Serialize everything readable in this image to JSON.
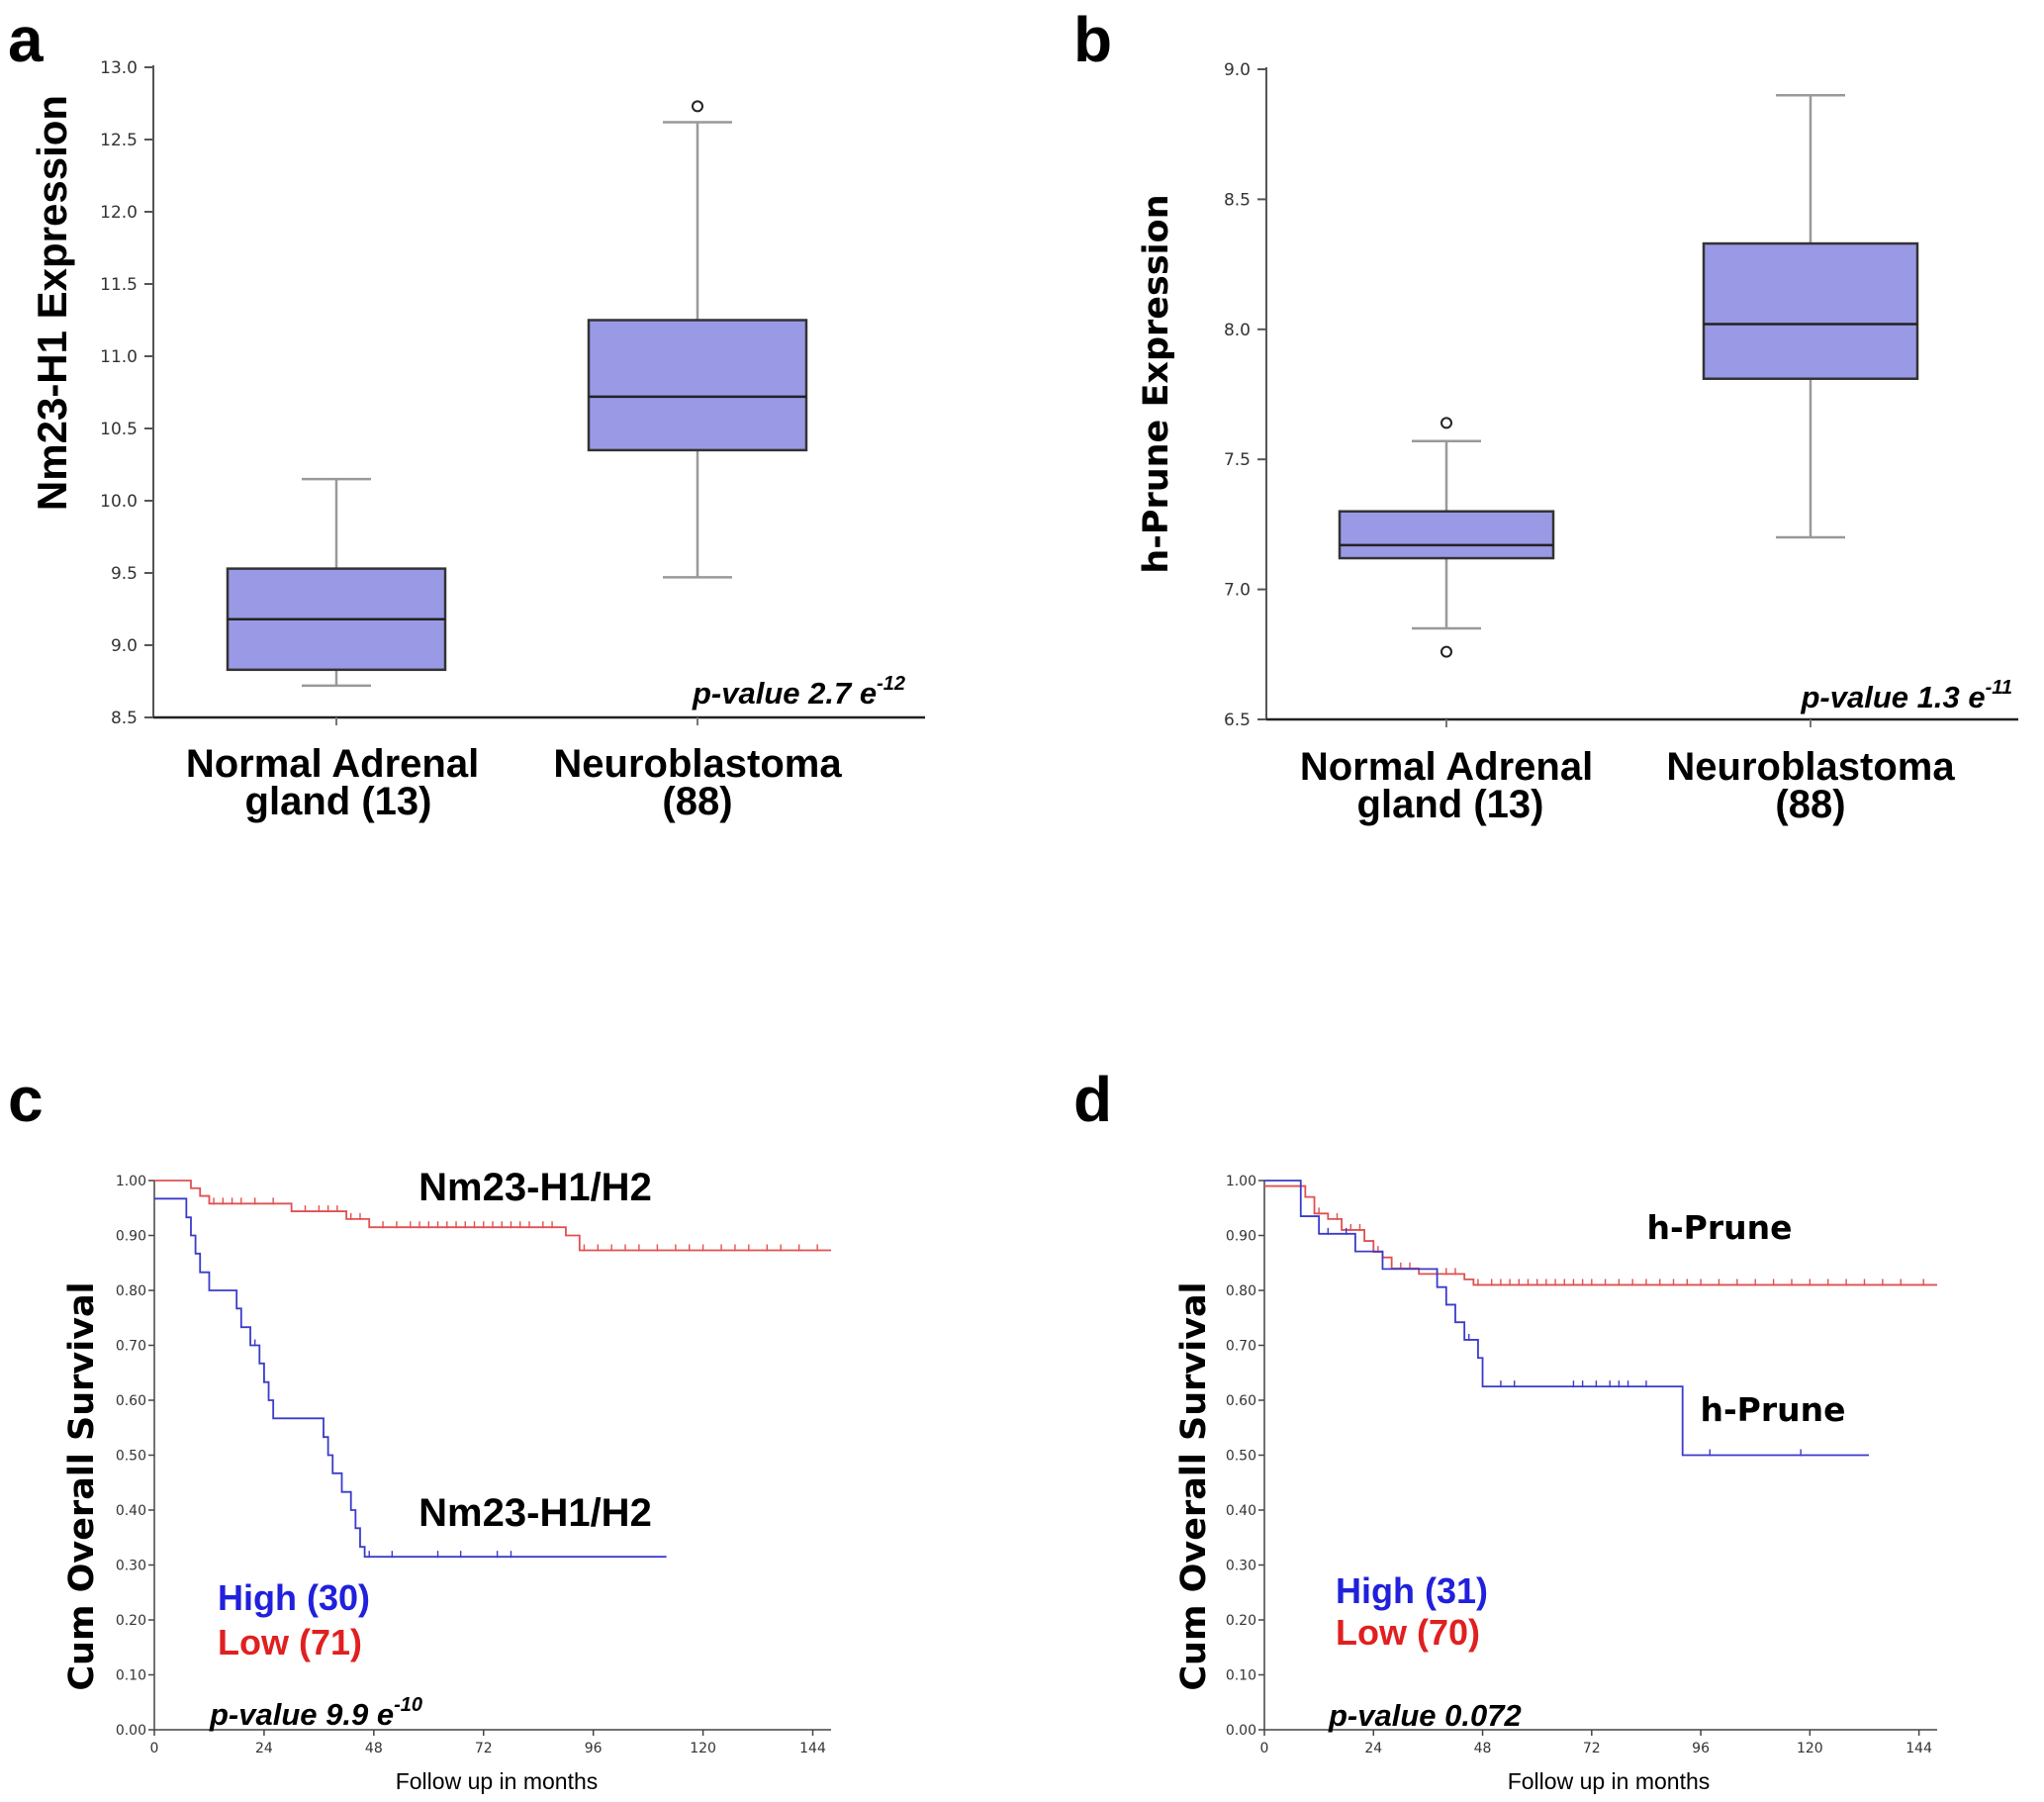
{
  "chart_data": [
    {
      "panel": "a",
      "type": "box",
      "ylabel": "Nm23-H1 Expression",
      "ylim": [
        8.5,
        13.0
      ],
      "yticks": [
        "8.5",
        "9.0",
        "9.5",
        "10.0",
        "10.5",
        "11.0",
        "11.5",
        "12.0",
        "12.5",
        "13.0"
      ],
      "categories": [
        {
          "line1": "Normal Adrenal",
          "line2": "gland (13)"
        },
        {
          "line1": "Neuroblastoma",
          "line2": "(88)"
        }
      ],
      "boxes": [
        {
          "whisker_low": 8.72,
          "q1": 8.83,
          "median": 9.18,
          "q3": 9.53,
          "whisker_high": 10.15,
          "outliers": []
        },
        {
          "whisker_low": 9.47,
          "q1": 10.35,
          "median": 10.72,
          "q3": 11.25,
          "whisker_high": 12.62,
          "outliers": [
            12.73
          ]
        }
      ],
      "pvalue": {
        "text": "p-value 2.7 e",
        "exp": "-12"
      }
    },
    {
      "panel": "b",
      "type": "box",
      "ylabel": "h-Prune Expression",
      "ylim": [
        6.5,
        9.0
      ],
      "yticks": [
        "6.5",
        "7.0",
        "7.5",
        "8.0",
        "8.5",
        "9.0"
      ],
      "categories": [
        {
          "line1": "Normal Adrenal",
          "line2": "gland (13)"
        },
        {
          "line1": "Neuroblastoma",
          "line2": "(88)"
        }
      ],
      "boxes": [
        {
          "whisker_low": 6.85,
          "q1": 7.12,
          "median": 7.17,
          "q3": 7.3,
          "whisker_high": 7.57,
          "outliers": [
            7.64,
            6.76
          ]
        },
        {
          "whisker_low": 7.2,
          "q1": 7.81,
          "median": 8.02,
          "q3": 8.33,
          "whisker_high": 8.9,
          "outliers": []
        }
      ],
      "pvalue": {
        "text": "p-value 1.3 e",
        "exp": "-11"
      }
    },
    {
      "panel": "c",
      "type": "line",
      "ylabel": "Cum Overall Survival",
      "xlabel": "Follow up in months",
      "xlim": [
        0,
        148
      ],
      "ylim": [
        0,
        1
      ],
      "xticks": [
        "0",
        "24",
        "48",
        "72",
        "96",
        "120",
        "144"
      ],
      "yticks": [
        "0.00",
        "0.10",
        "0.20",
        "0.30",
        "0.40",
        "0.50",
        "0.60",
        "0.70",
        "0.80",
        "0.90",
        "1.00"
      ],
      "series": [
        {
          "name": "High",
          "count": "(30)",
          "color": "#3b3bcc",
          "label_color": "#2020dd",
          "steps": [
            [
              0,
              0.967
            ],
            [
              7,
              0.933
            ],
            [
              8,
              0.9
            ],
            [
              9,
              0.867
            ],
            [
              10,
              0.833
            ],
            [
              12,
              0.8
            ],
            [
              18,
              0.767
            ],
            [
              19,
              0.733
            ],
            [
              21,
              0.7
            ],
            [
              23,
              0.667
            ],
            [
              24,
              0.633
            ],
            [
              25,
              0.6
            ],
            [
              26,
              0.567
            ],
            [
              37,
              0.533
            ],
            [
              38,
              0.5
            ],
            [
              39,
              0.467
            ],
            [
              41,
              0.433
            ],
            [
              43,
              0.4
            ],
            [
              44,
              0.367
            ],
            [
              45,
              0.333
            ],
            [
              46,
              0.315
            ]
          ],
          "end": 112,
          "censors": [
            [
              22,
              0.7
            ],
            [
              24,
              0.633
            ],
            [
              37,
              0.533
            ],
            [
              47,
              0.315
            ],
            [
              52,
              0.315
            ],
            [
              62,
              0.315
            ],
            [
              67,
              0.315
            ],
            [
              75,
              0.315
            ],
            [
              78,
              0.315
            ]
          ]
        },
        {
          "name": "Low",
          "count": "(71)",
          "color": "#e05050",
          "label_color": "#e02020",
          "steps": [
            [
              0,
              1.0
            ],
            [
              8,
              0.986
            ],
            [
              10,
              0.972
            ],
            [
              12,
              0.958
            ],
            [
              30,
              0.944
            ],
            [
              42,
              0.93
            ],
            [
              47,
              0.915
            ],
            [
              90,
              0.9
            ],
            [
              93,
              0.873
            ]
          ],
          "end": 148,
          "censors": [
            [
              13,
              0.958
            ],
            [
              15,
              0.958
            ],
            [
              17,
              0.958
            ],
            [
              19,
              0.958
            ],
            [
              22,
              0.958
            ],
            [
              26,
              0.958
            ],
            [
              33,
              0.944
            ],
            [
              36,
              0.944
            ],
            [
              38,
              0.944
            ],
            [
              40,
              0.944
            ],
            [
              43,
              0.93
            ],
            [
              45,
              0.93
            ],
            [
              50,
              0.915
            ],
            [
              53,
              0.915
            ],
            [
              56,
              0.915
            ],
            [
              58,
              0.915
            ],
            [
              60,
              0.915
            ],
            [
              62,
              0.915
            ],
            [
              64,
              0.915
            ],
            [
              66,
              0.915
            ],
            [
              68,
              0.915
            ],
            [
              70,
              0.915
            ],
            [
              72,
              0.915
            ],
            [
              74,
              0.915
            ],
            [
              76,
              0.915
            ],
            [
              78,
              0.915
            ],
            [
              80,
              0.915
            ],
            [
              82,
              0.915
            ],
            [
              85,
              0.915
            ],
            [
              87,
              0.915
            ],
            [
              94,
              0.873
            ],
            [
              97,
              0.873
            ],
            [
              100,
              0.873
            ],
            [
              103,
              0.873
            ],
            [
              106,
              0.873
            ],
            [
              110,
              0.873
            ],
            [
              114,
              0.873
            ],
            [
              117,
              0.873
            ],
            [
              120,
              0.873
            ],
            [
              124,
              0.873
            ],
            [
              127,
              0.873
            ],
            [
              130,
              0.873
            ],
            [
              134,
              0.873
            ],
            [
              137,
              0.873
            ],
            [
              141,
              0.873
            ],
            [
              145,
              0.873
            ]
          ]
        }
      ],
      "annotations": [
        "Nm23-H1/H2",
        "Nm23-H1/H2"
      ],
      "legend": [
        "High (30)",
        "Low (71)"
      ],
      "pvalue": {
        "text": "p-value 9.9 e",
        "exp": "-10"
      }
    },
    {
      "panel": "d",
      "type": "line",
      "ylabel": "Cum Overall Survival",
      "xlabel": "Follow up in months",
      "xlim": [
        0,
        148
      ],
      "ylim": [
        0,
        1
      ],
      "xticks": [
        "0",
        "24",
        "48",
        "72",
        "96",
        "120",
        "144"
      ],
      "yticks": [
        "0.00",
        "0.10",
        "0.20",
        "0.30",
        "0.40",
        "0.50",
        "0.60",
        "0.70",
        "0.80",
        "0.90",
        "1.00"
      ],
      "series": [
        {
          "name": "Low",
          "count": "(70)",
          "color": "#e05050",
          "label_color": "#e02020",
          "steps": [
            [
              0,
              0.99
            ],
            [
              9,
              0.97
            ],
            [
              11,
              0.94
            ],
            [
              14,
              0.93
            ],
            [
              17,
              0.91
            ],
            [
              22,
              0.89
            ],
            [
              24,
              0.87
            ],
            [
              26,
              0.86
            ],
            [
              28,
              0.84
            ],
            [
              34,
              0.83
            ],
            [
              44,
              0.82
            ],
            [
              46,
              0.81
            ]
          ],
          "end": 148,
          "censors": [
            [
              12,
              0.94
            ],
            [
              16,
              0.93
            ],
            [
              19,
              0.91
            ],
            [
              21,
              0.91
            ],
            [
              25,
              0.87
            ],
            [
              30,
              0.84
            ],
            [
              32,
              0.84
            ],
            [
              38,
              0.83
            ],
            [
              40,
              0.83
            ],
            [
              42,
              0.83
            ],
            [
              47,
              0.81
            ],
            [
              50,
              0.81
            ],
            [
              52,
              0.81
            ],
            [
              54,
              0.81
            ],
            [
              56,
              0.81
            ],
            [
              58,
              0.81
            ],
            [
              60,
              0.81
            ],
            [
              62,
              0.81
            ],
            [
              64,
              0.81
            ],
            [
              66,
              0.81
            ],
            [
              68,
              0.81
            ],
            [
              70,
              0.81
            ],
            [
              72,
              0.81
            ],
            [
              75,
              0.81
            ],
            [
              78,
              0.81
            ],
            [
              81,
              0.81
            ],
            [
              84,
              0.81
            ],
            [
              87,
              0.81
            ],
            [
              90,
              0.81
            ],
            [
              93,
              0.81
            ],
            [
              96,
              0.81
            ],
            [
              100,
              0.81
            ],
            [
              104,
              0.81
            ],
            [
              108,
              0.81
            ],
            [
              112,
              0.81
            ],
            [
              116,
              0.81
            ],
            [
              120,
              0.81
            ],
            [
              124,
              0.81
            ],
            [
              128,
              0.81
            ],
            [
              132,
              0.81
            ],
            [
              136,
              0.81
            ],
            [
              140,
              0.81
            ],
            [
              145,
              0.81
            ]
          ]
        },
        {
          "name": "High",
          "count": "(31)",
          "color": "#3b3bcc",
          "label_color": "#2020dd",
          "steps": [
            [
              0,
              1.0
            ],
            [
              8,
              0.935
            ],
            [
              12,
              0.903
            ],
            [
              20,
              0.871
            ],
            [
              26,
              0.839
            ],
            [
              38,
              0.806
            ],
            [
              40,
              0.774
            ],
            [
              42,
              0.742
            ],
            [
              44,
              0.71
            ],
            [
              47,
              0.677
            ],
            [
              48,
              0.625
            ],
            [
              92,
              0.5
            ]
          ],
          "end": 133,
          "censors": [
            [
              14,
              0.903
            ],
            [
              18,
              0.903
            ],
            [
              45,
              0.71
            ],
            [
              52,
              0.625
            ],
            [
              55,
              0.625
            ],
            [
              68,
              0.625
            ],
            [
              70,
              0.625
            ],
            [
              73,
              0.625
            ],
            [
              76,
              0.625
            ],
            [
              78,
              0.625
            ],
            [
              80,
              0.625
            ],
            [
              84,
              0.625
            ],
            [
              98,
              0.5
            ],
            [
              118,
              0.5
            ]
          ]
        }
      ],
      "annotations": [
        "h-Prune",
        "h-Prune"
      ],
      "legend": [
        "High (31)",
        "Low (70)"
      ],
      "pvalue": {
        "text": "p-value 0.072",
        "exp": ""
      }
    }
  ]
}
